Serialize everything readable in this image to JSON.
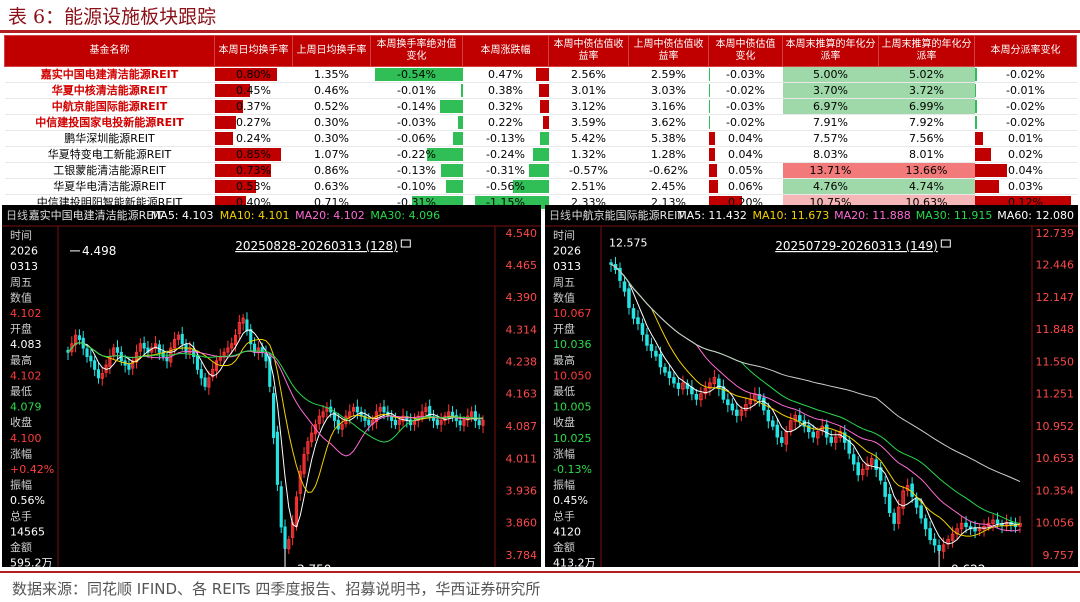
{
  "title": "表 6：能源设施板块跟踪",
  "footer": "数据来源：同花顺 IFIND、各 REITs 四季度报告、招募说明书，华西证券研究所",
  "colors": {
    "red": "#c00000",
    "green": "#2fbf56",
    "light_green": "#9fd9a9",
    "light_red": "#f4b6b6",
    "mid_red": "#f27a7a"
  },
  "table": {
    "headers": [
      "基金名称",
      "本周日均换手率",
      "上周日均换手率",
      "本周换手率绝对值变化",
      "本周涨跌幅",
      "本周中债估值收益率",
      "上周中债估值收益率",
      "本周中债估值变化",
      "本周末推算的年化分派率",
      "上周末推算的年化分派率",
      "本周分派率变化"
    ],
    "rows": [
      {
        "name": "嘉实中国电建清洁能源REIT",
        "hl": true,
        "cells": [
          "0.80%",
          "1.35%",
          "-0.54%",
          "0.47%",
          "2.56%",
          "2.59%",
          "-0.03%",
          "5.00%",
          "5.02%",
          "-0.02%"
        ]
      },
      {
        "name": "华夏中核清洁能源REIT",
        "hl": true,
        "cells": [
          "0.45%",
          "0.46%",
          "-0.01%",
          "0.38%",
          "3.01%",
          "3.03%",
          "-0.02%",
          "3.70%",
          "3.72%",
          "-0.01%"
        ]
      },
      {
        "name": "中航京能国际能源REIT",
        "hl": true,
        "cells": [
          "0.37%",
          "0.52%",
          "-0.14%",
          "0.32%",
          "3.12%",
          "3.16%",
          "-0.03%",
          "6.97%",
          "6.99%",
          "-0.02%"
        ]
      },
      {
        "name": "中信建投国家电投新能源REIT",
        "hl": true,
        "cells": [
          "0.27%",
          "0.30%",
          "-0.03%",
          "0.22%",
          "3.59%",
          "3.62%",
          "-0.02%",
          "7.91%",
          "7.92%",
          "-0.02%"
        ]
      },
      {
        "name": "鹏华深圳能源REIT",
        "hl": false,
        "cells": [
          "0.24%",
          "0.30%",
          "-0.06%",
          "-0.13%",
          "5.42%",
          "5.38%",
          "0.04%",
          "7.57%",
          "7.56%",
          "0.01%"
        ]
      },
      {
        "name": "华夏特变电工新能源REIT",
        "hl": false,
        "cells": [
          "0.85%",
          "1.07%",
          "-0.22%",
          "-0.24%",
          "1.32%",
          "1.28%",
          "0.04%",
          "8.03%",
          "8.01%",
          "0.02%"
        ]
      },
      {
        "name": "工银蒙能清洁能源REIT",
        "hl": false,
        "cells": [
          "0.73%",
          "0.86%",
          "-0.13%",
          "-0.31%",
          "-0.57%",
          "-0.62%",
          "0.05%",
          "13.71%",
          "13.66%",
          "0.04%"
        ]
      },
      {
        "name": "华夏华电清洁能源REIT",
        "hl": false,
        "cells": [
          "0.53%",
          "0.63%",
          "-0.10%",
          "-0.56%",
          "2.51%",
          "2.45%",
          "0.06%",
          "4.76%",
          "4.74%",
          "0.03%"
        ]
      },
      {
        "name": "中信建投明阳智能新能源REIT",
        "hl": false,
        "cells": [
          "0.40%",
          "0.71%",
          "-0.31%",
          "-1.15%",
          "2.33%",
          "2.13%",
          "0.20%",
          "10.75%",
          "10.63%",
          "0.12%"
        ]
      }
    ],
    "bar_values": {
      "turnover": [
        0.8,
        0.45,
        0.37,
        0.27,
        0.24,
        0.85,
        0.73,
        0.53,
        0.4
      ],
      "turnover_change": [
        -0.54,
        -0.01,
        -0.14,
        -0.03,
        -0.06,
        -0.22,
        -0.13,
        -0.1,
        -0.31
      ],
      "weekly_change": [
        0.47,
        0.38,
        0.32,
        0.22,
        -0.13,
        -0.24,
        -0.31,
        -0.56,
        -1.15
      ],
      "yield_change": [
        -0.03,
        -0.02,
        -0.03,
        -0.02,
        0.04,
        0.04,
        0.05,
        0.06,
        0.2
      ],
      "dist_change": [
        -0.02,
        -0.01,
        -0.02,
        -0.02,
        0.01,
        0.02,
        0.04,
        0.03,
        0.12
      ]
    },
    "dist_fill": [
      "light_green",
      "light_green",
      "light_green",
      "none",
      "none",
      "none",
      "mid_red",
      "light_green",
      "light_red"
    ]
  },
  "chart_data": [
    {
      "type": "line",
      "kind": "candlestick",
      "header": {
        "period": "日线",
        "name": "嘉实中国电建清洁能源REIT",
        "ma5": "MA5: 4.103",
        "ma10": "MA10: 4.101",
        "ma20": "MA20: 4.102",
        "ma30": "MA30: 4.096"
      },
      "range_label": "20250828-20260313 (128)",
      "y_ticks": [
        "4.540",
        "4.465",
        "4.390",
        "4.314",
        "4.238",
        "4.163",
        "4.087",
        "4.011",
        "3.936",
        "3.860",
        "3.784"
      ],
      "ylim": [
        3.784,
        4.54
      ],
      "annotations": {
        "high": "4.498",
        "low": "3.750"
      },
      "info": [
        "时间",
        "2026",
        "0313",
        "周五",
        "数值",
        "4.102",
        "开盘",
        "4.083",
        "最高",
        "4.102",
        "最低",
        "4.079",
        "收盘",
        "4.100",
        "涨幅",
        "+0.42%",
        "振幅",
        "0.56%",
        "总手",
        "14565",
        "金额",
        "595.2万"
      ],
      "price_path": [
        4.26,
        4.28,
        4.3,
        4.29,
        4.27,
        4.25,
        4.24,
        4.22,
        4.2,
        4.21,
        4.23,
        4.25,
        4.27,
        4.26,
        4.24,
        4.23,
        4.22,
        4.24,
        4.26,
        4.28,
        4.27,
        4.26,
        4.27,
        4.28,
        4.26,
        4.25,
        4.24,
        4.27,
        4.29,
        4.3,
        4.28,
        4.26,
        4.27,
        4.25,
        4.22,
        4.2,
        4.18,
        4.2,
        4.22,
        4.24,
        4.25,
        4.26,
        4.27,
        4.28,
        4.3,
        4.33,
        4.34,
        4.31,
        4.28,
        4.26,
        4.27,
        4.26,
        4.24,
        4.18,
        4.06,
        3.95,
        3.85,
        3.8,
        3.82,
        3.86,
        3.92,
        3.98,
        4.02,
        4.05,
        4.07,
        4.09,
        4.11,
        4.12,
        4.13,
        4.12,
        4.1,
        4.08,
        4.09,
        4.11,
        4.12,
        4.13,
        4.12,
        4.11,
        4.1,
        4.09,
        4.1,
        4.12,
        4.13,
        4.12,
        4.11,
        4.1,
        4.09,
        4.1,
        4.11,
        4.1,
        4.09,
        4.1,
        4.11,
        4.12,
        4.13,
        4.11,
        4.1,
        4.09,
        4.1,
        4.11,
        4.12,
        4.11,
        4.1,
        4.09,
        4.1,
        4.11,
        4.12,
        4.1,
        4.09,
        4.1
      ]
    },
    {
      "type": "line",
      "kind": "candlestick",
      "header": {
        "period": "日线",
        "name": "中航京能国际能源REIT",
        "ma5": "MA5: 11.432",
        "ma10": "MA10: 11.673",
        "ma20": "MA20: 11.888",
        "ma30": "MA30: 11.915",
        "ma60": "MA60: 12.080"
      },
      "range_label": "20250729-20260313 (149)",
      "y_ticks": [
        "12.739",
        "12.446",
        "12.147",
        "11.848",
        "11.550",
        "11.251",
        "10.952",
        "10.653",
        "10.354",
        "10.056",
        "9.757"
      ],
      "ylim": [
        9.757,
        12.739
      ],
      "annotations": {
        "high": "12.575",
        "low": "9.622"
      },
      "info": [
        "时间",
        "2026",
        "0313",
        "周五",
        "数值",
        "10.067",
        "开盘",
        "10.036",
        "最高",
        "10.050",
        "最低",
        "10.005",
        "收盘",
        "10.025",
        "涨幅",
        "-0.13%",
        "振幅",
        "0.45%",
        "总手",
        "4120",
        "金额",
        "413.2万"
      ],
      "price_path": [
        12.45,
        12.4,
        12.3,
        12.2,
        12.05,
        11.95,
        11.9,
        11.8,
        11.7,
        11.65,
        11.6,
        11.5,
        11.45,
        11.4,
        11.35,
        11.3,
        11.35,
        11.3,
        11.25,
        11.2,
        11.25,
        11.3,
        11.35,
        11.4,
        11.3,
        11.2,
        11.15,
        11.1,
        11.05,
        11.1,
        11.15,
        11.2,
        11.25,
        11.2,
        11.1,
        11.0,
        10.95,
        10.85,
        10.8,
        10.9,
        11.0,
        11.05,
        11.0,
        10.95,
        10.9,
        10.85,
        10.9,
        10.95,
        10.85,
        10.8,
        10.85,
        10.9,
        10.8,
        10.7,
        10.6,
        10.5,
        10.55,
        10.6,
        10.65,
        10.55,
        10.45,
        10.3,
        10.15,
        10.05,
        10.2,
        10.35,
        10.4,
        10.3,
        10.2,
        10.1,
        10.0,
        9.9,
        9.85,
        9.8,
        9.85,
        9.9,
        9.95,
        10.0,
        10.05,
        10.02,
        10.0,
        9.98,
        10.0,
        10.02,
        10.05,
        10.08,
        10.05,
        10.03,
        10.06,
        10.04,
        10.02,
        10.05
      ]
    }
  ]
}
